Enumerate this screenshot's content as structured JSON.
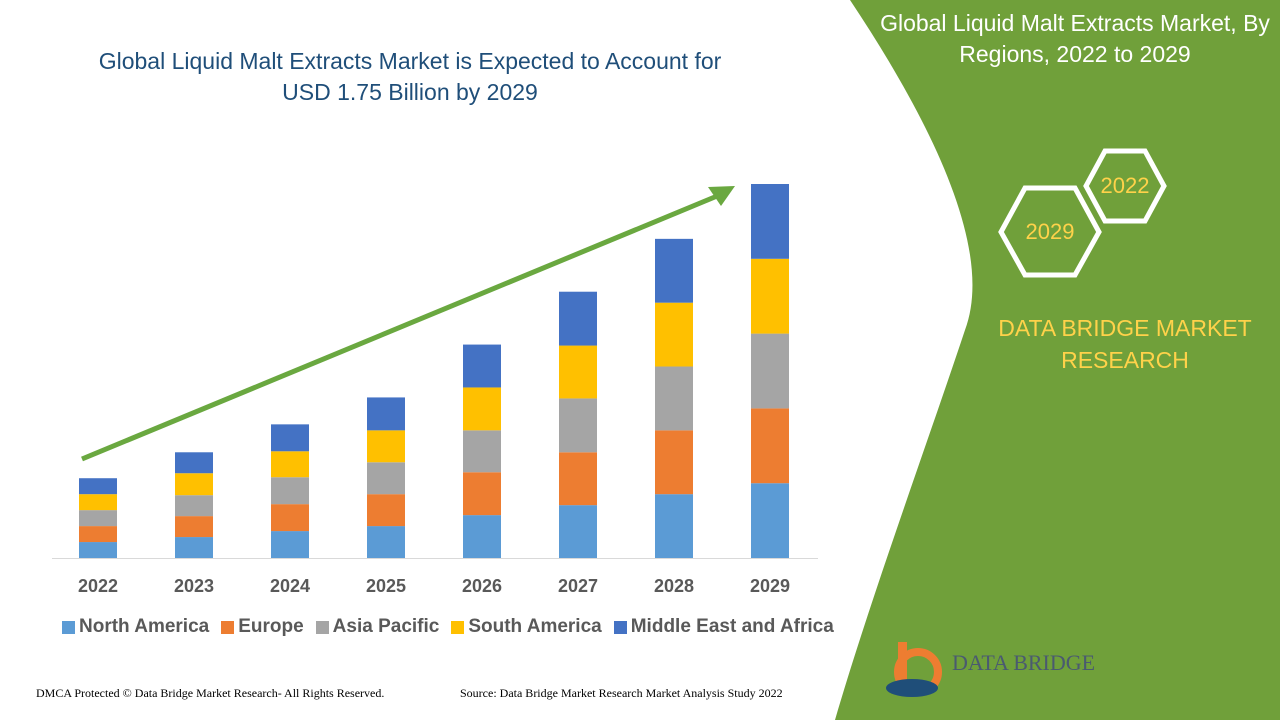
{
  "chart_data": {
    "type": "stacked-bar",
    "title": "Global Liquid Malt Extracts Market is Expected to Account for USD 1.75 Billion by 2029",
    "categories": [
      "2022",
      "2023",
      "2024",
      "2025",
      "2026",
      "2027",
      "2028",
      "2029"
    ],
    "series": [
      {
        "name": "North America",
        "color": "#5b9bd5",
        "values": [
          16,
          21,
          27,
          32,
          43,
          53,
          64,
          75
        ]
      },
      {
        "name": "Europe",
        "color": "#ed7d31",
        "values": [
          16,
          21,
          27,
          32,
          43,
          53,
          64,
          75
        ]
      },
      {
        "name": "Asia Pacific",
        "color": "#a5a5a5",
        "values": [
          16,
          21,
          27,
          32,
          42,
          54,
          64,
          75
        ]
      },
      {
        "name": "South America",
        "color": "#ffc000",
        "values": [
          16,
          22,
          26,
          32,
          43,
          53,
          64,
          75
        ]
      },
      {
        "name": "Middle East and Africa",
        "color": "#4472c4",
        "values": [
          16,
          21,
          27,
          33,
          43,
          54,
          64,
          75
        ]
      }
    ]
  },
  "panel": {
    "title": "Global Liquid Malt Extracts Market, By Regions, 2022 to 2029",
    "hexagons": [
      "2022",
      "2029"
    ],
    "brand": "DATA BRIDGE MARKET RESEARCH"
  },
  "logo": "DATA BRIDGE",
  "footer": {
    "copyright": "DMCA Protected © Data Bridge Market Research- All Rights Reserved.",
    "source": "Source: Data Bridge Market Research Market Analysis Study 2022"
  }
}
